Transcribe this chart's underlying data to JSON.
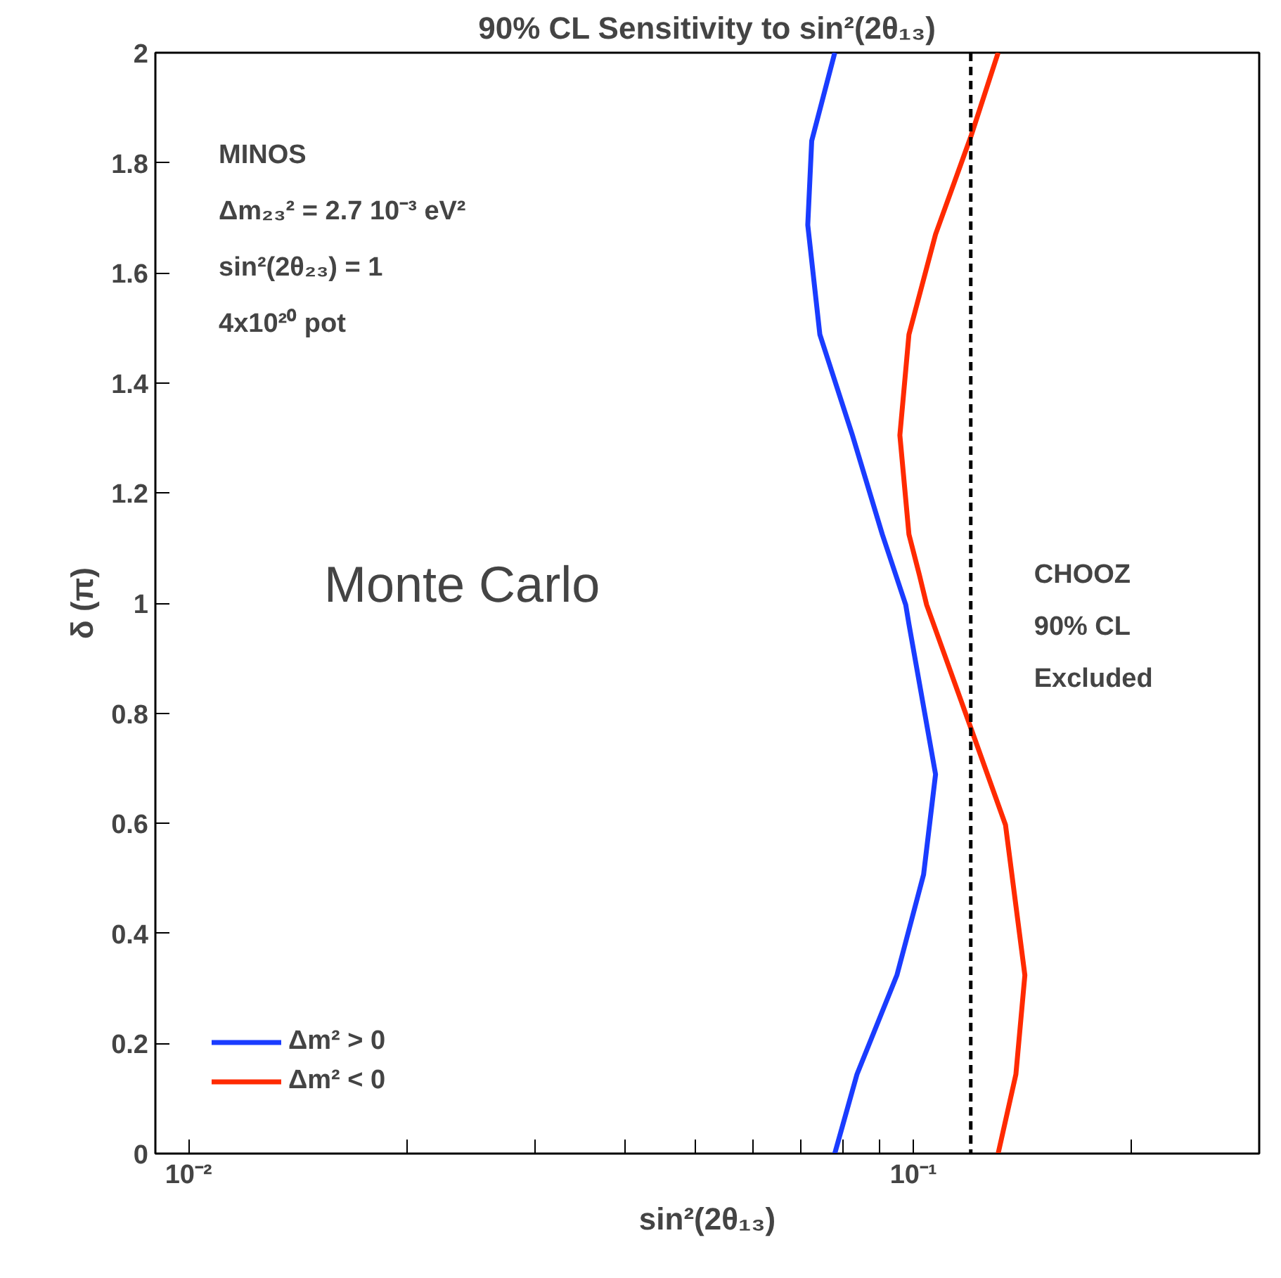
{
  "chart_data": {
    "type": "line",
    "title": "90% CL Sensitivity to sin²(2θ₁₃)",
    "xlabel": "sin²(2θ₁₃)",
    "ylabel": "δ (π)",
    "log": "x",
    "xlim": [
      0.009,
      0.3
    ],
    "ylim": [
      0,
      2
    ],
    "xticks": [
      {
        "value": 0.01,
        "label": "10⁻²"
      },
      {
        "value": 0.02,
        "label": null
      },
      {
        "value": 0.03,
        "label": null
      },
      {
        "value": 0.04,
        "label": null
      },
      {
        "value": 0.05,
        "label": null
      },
      {
        "value": 0.06,
        "label": null
      },
      {
        "value": 0.07,
        "label": null
      },
      {
        "value": 0.08,
        "label": null
      },
      {
        "value": 0.09,
        "label": null
      },
      {
        "value": 0.1,
        "label": "10⁻¹"
      },
      {
        "value": 0.2,
        "label": null
      }
    ],
    "yticks": [
      0,
      0.2,
      0.4,
      0.6,
      0.8,
      1,
      1.2,
      1.4,
      1.6,
      1.8,
      2
    ],
    "grid": false,
    "legend": "bottom left",
    "line_style": "solid",
    "marker": "none",
    "series": [
      {
        "name": "Δm² > 0",
        "color": "#1a3cff",
        "x": [
          0.0779,
          0.0724,
          0.0715,
          0.0743,
          0.0824,
          0.0906,
          0.0976,
          0.0986,
          0.1073,
          0.1033,
          0.0949,
          0.0836,
          0.0779
        ],
        "values": [
          2.0,
          1.84,
          1.687,
          1.488,
          1.305,
          1.125,
          0.997,
          0.962,
          0.689,
          0.507,
          0.324,
          0.144,
          0
        ]
      },
      {
        "name": "Δm² < 0",
        "color": "#ff2a00",
        "x": [
          0.1309,
          0.1202,
          0.1073,
          0.0986,
          0.0958,
          0.0986,
          0.1019,
          0.1043,
          0.1196,
          0.134,
          0.1425,
          0.1385,
          0.1309
        ],
        "values": [
          2.0,
          1.85,
          1.67,
          1.488,
          1.305,
          1.125,
          1.052,
          0.997,
          0.779,
          0.597,
          0.324,
          0.144,
          0
        ]
      }
    ],
    "ref_lines": [
      {
        "axis": "x",
        "value": 0.12,
        "label": "CHOOZ\n90% CL\nExcluded",
        "color": "#000000",
        "line_style": "dashed"
      }
    ],
    "annotations": [
      "MINOS",
      "Δm₂₃² = 2.7 10⁻³ eV²",
      "sin²(2θ₂₃) = 1",
      "4x10²⁰ pot",
      "Monte Carlo"
    ]
  }
}
